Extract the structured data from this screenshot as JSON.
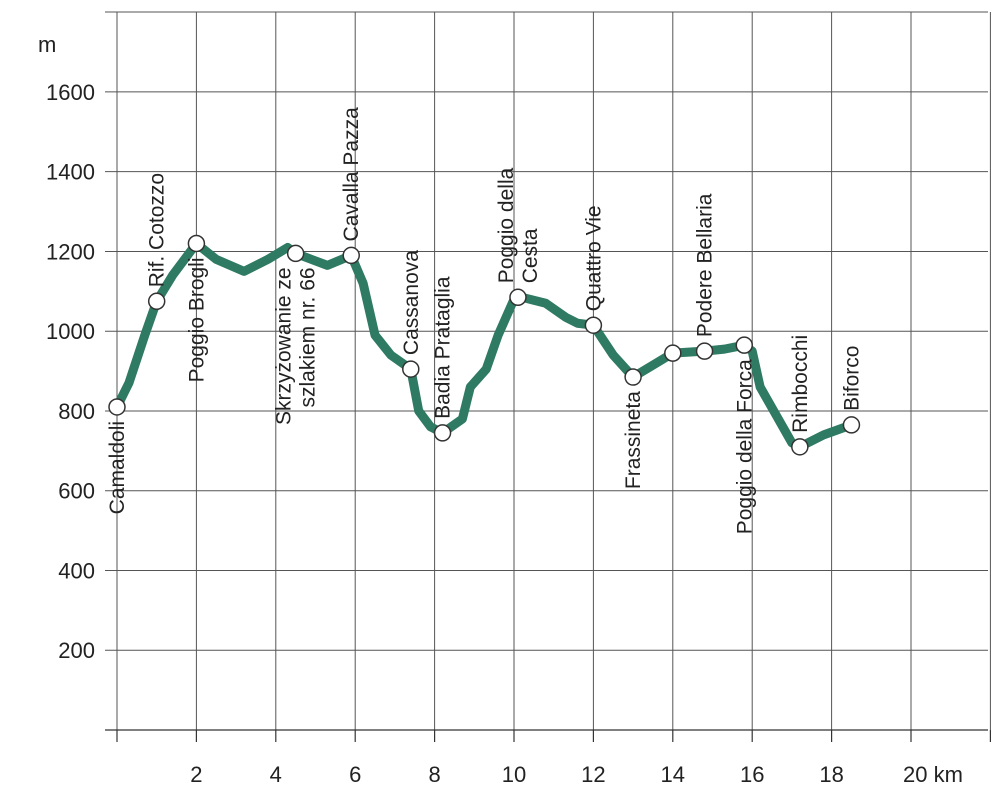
{
  "chart_data": {
    "type": "line",
    "ylabel": "m",
    "xunit": "km",
    "xlim": [
      0,
      22
    ],
    "ylim": [
      0,
      1700
    ],
    "x_ticks": [
      {
        "value": 2,
        "label": "2"
      },
      {
        "value": 4,
        "label": "4"
      },
      {
        "value": 6,
        "label": "6"
      },
      {
        "value": 8,
        "label": "8"
      },
      {
        "value": 10,
        "label": "10"
      },
      {
        "value": 12,
        "label": "12"
      },
      {
        "value": 14,
        "label": "14"
      },
      {
        "value": 16,
        "label": "16"
      },
      {
        "value": 18,
        "label": "18"
      },
      {
        "value": 20,
        "label": "20 km"
      }
    ],
    "y_ticks": [
      {
        "value": 200,
        "label": "200"
      },
      {
        "value": 400,
        "label": "400"
      },
      {
        "value": 600,
        "label": "600"
      },
      {
        "value": 800,
        "label": "800"
      },
      {
        "value": 1000,
        "label": "1000"
      },
      {
        "value": 1200,
        "label": "1200"
      },
      {
        "value": 1400,
        "label": "1400"
      },
      {
        "value": 1600,
        "label": "1600"
      }
    ],
    "grid": true,
    "line_color": "#2f7a63",
    "profile": [
      {
        "x": 0.0,
        "y": 810
      },
      {
        "x": 0.3,
        "y": 870
      },
      {
        "x": 0.7,
        "y": 990
      },
      {
        "x": 1.0,
        "y": 1075
      },
      {
        "x": 1.4,
        "y": 1140
      },
      {
        "x": 2.0,
        "y": 1220
      },
      {
        "x": 2.5,
        "y": 1180
      },
      {
        "x": 3.2,
        "y": 1150
      },
      {
        "x": 3.8,
        "y": 1180
      },
      {
        "x": 4.3,
        "y": 1210
      },
      {
        "x": 4.5,
        "y": 1195
      },
      {
        "x": 4.9,
        "y": 1180
      },
      {
        "x": 5.3,
        "y": 1165
      },
      {
        "x": 5.9,
        "y": 1190
      },
      {
        "x": 6.2,
        "y": 1120
      },
      {
        "x": 6.5,
        "y": 990
      },
      {
        "x": 6.9,
        "y": 940
      },
      {
        "x": 7.4,
        "y": 905
      },
      {
        "x": 7.6,
        "y": 800
      },
      {
        "x": 7.9,
        "y": 760
      },
      {
        "x": 8.2,
        "y": 745
      },
      {
        "x": 8.7,
        "y": 780
      },
      {
        "x": 8.9,
        "y": 860
      },
      {
        "x": 9.3,
        "y": 905
      },
      {
        "x": 9.6,
        "y": 990
      },
      {
        "x": 10.0,
        "y": 1080
      },
      {
        "x": 10.2,
        "y": 1085
      },
      {
        "x": 10.8,
        "y": 1070
      },
      {
        "x": 11.3,
        "y": 1035
      },
      {
        "x": 11.6,
        "y": 1020
      },
      {
        "x": 12.0,
        "y": 1015
      },
      {
        "x": 12.5,
        "y": 940
      },
      {
        "x": 13.0,
        "y": 885
      },
      {
        "x": 13.5,
        "y": 915
      },
      {
        "x": 14.0,
        "y": 945
      },
      {
        "x": 14.8,
        "y": 950
      },
      {
        "x": 15.3,
        "y": 955
      },
      {
        "x": 15.8,
        "y": 965
      },
      {
        "x": 16.0,
        "y": 950
      },
      {
        "x": 16.2,
        "y": 860
      },
      {
        "x": 16.6,
        "y": 790
      },
      {
        "x": 17.0,
        "y": 720
      },
      {
        "x": 17.2,
        "y": 710
      },
      {
        "x": 17.8,
        "y": 740
      },
      {
        "x": 18.5,
        "y": 765
      }
    ],
    "places": [
      {
        "name": "Camaldoli",
        "x": 0.0,
        "y": 810,
        "side": "below"
      },
      {
        "name": "Rif. Cotozzo",
        "x": 1.0,
        "y": 1075,
        "side": "above"
      },
      {
        "name": "Poggio Brogli",
        "x": 2.0,
        "y": 1220,
        "side": "below"
      },
      {
        "name": "Skrzyżowanie ze",
        "name2": "szlakiem nr. 66",
        "x": 4.5,
        "y": 1195,
        "side": "below"
      },
      {
        "name": "Cavalla Pazza",
        "x": 5.9,
        "y": 1190,
        "side": "above"
      },
      {
        "name": "Cassanova",
        "x": 7.4,
        "y": 905,
        "side": "above"
      },
      {
        "name": "Badia Prataglia",
        "x": 8.2,
        "y": 745,
        "side": "above"
      },
      {
        "name": "Poggio della",
        "name2": "Cesta",
        "x": 10.1,
        "y": 1085,
        "side": "above"
      },
      {
        "name": "Quattro Vie",
        "x": 12.0,
        "y": 1015,
        "side": "above"
      },
      {
        "name": "Frassineta",
        "x": 13.0,
        "y": 885,
        "side": "below"
      },
      {
        "name": "",
        "x": 14.0,
        "y": 945,
        "side": "none"
      },
      {
        "name": "Podere Bellaria",
        "x": 14.8,
        "y": 950,
        "side": "above"
      },
      {
        "name": "Poggio della Forca",
        "x": 15.8,
        "y": 965,
        "side": "below"
      },
      {
        "name": "Rimbocchi",
        "x": 17.2,
        "y": 710,
        "side": "above"
      },
      {
        "name": "Biforco",
        "x": 18.5,
        "y": 765,
        "side": "above"
      }
    ]
  }
}
